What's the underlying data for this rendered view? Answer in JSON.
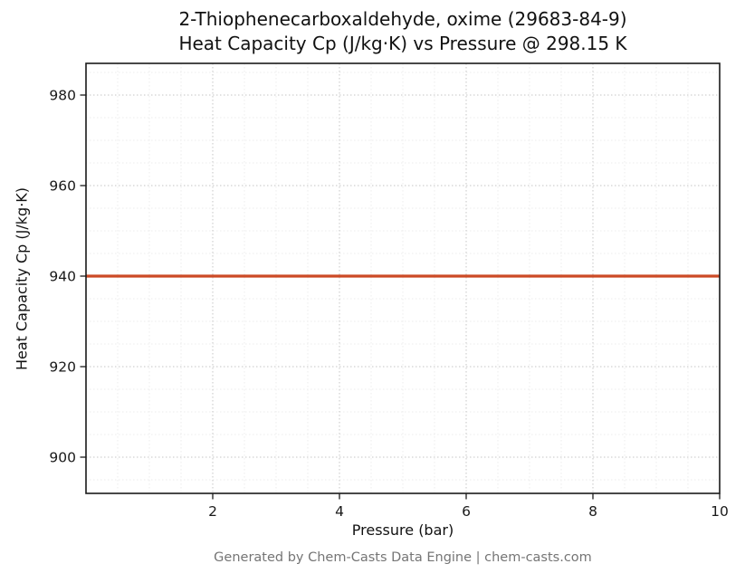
{
  "title": {
    "line1": "2-Thiophenecarboxaldehyde, oxime (29683-84-9)",
    "line2": "Heat Capacity Cp (J/kg·K) vs Pressure @ 298.15 K"
  },
  "footer_text": "Generated by Chem-Casts Data Engine | chem-casts.com",
  "chart_data": {
    "type": "line",
    "title": "2-Thiophenecarboxaldehyde, oxime (29683-84-9) Heat Capacity Cp (J/kg·K) vs Pressure @ 298.15 K",
    "xlabel": "Pressure (bar)",
    "ylabel": "Heat Capacity Cp (J/kg·K)",
    "xlim": [
      0,
      10
    ],
    "ylim": [
      892,
      987
    ],
    "xticks": [
      2,
      4,
      6,
      8,
      10
    ],
    "yticks": [
      900,
      920,
      940,
      960,
      980
    ],
    "grid": true,
    "legend": "none",
    "series": [
      {
        "name": "Heat Capacity Cp",
        "color": "#cc4a26",
        "x": [
          0,
          10
        ],
        "y": [
          940,
          940
        ]
      }
    ],
    "constant_value": 940,
    "temperature_condition": "298.15 K"
  }
}
